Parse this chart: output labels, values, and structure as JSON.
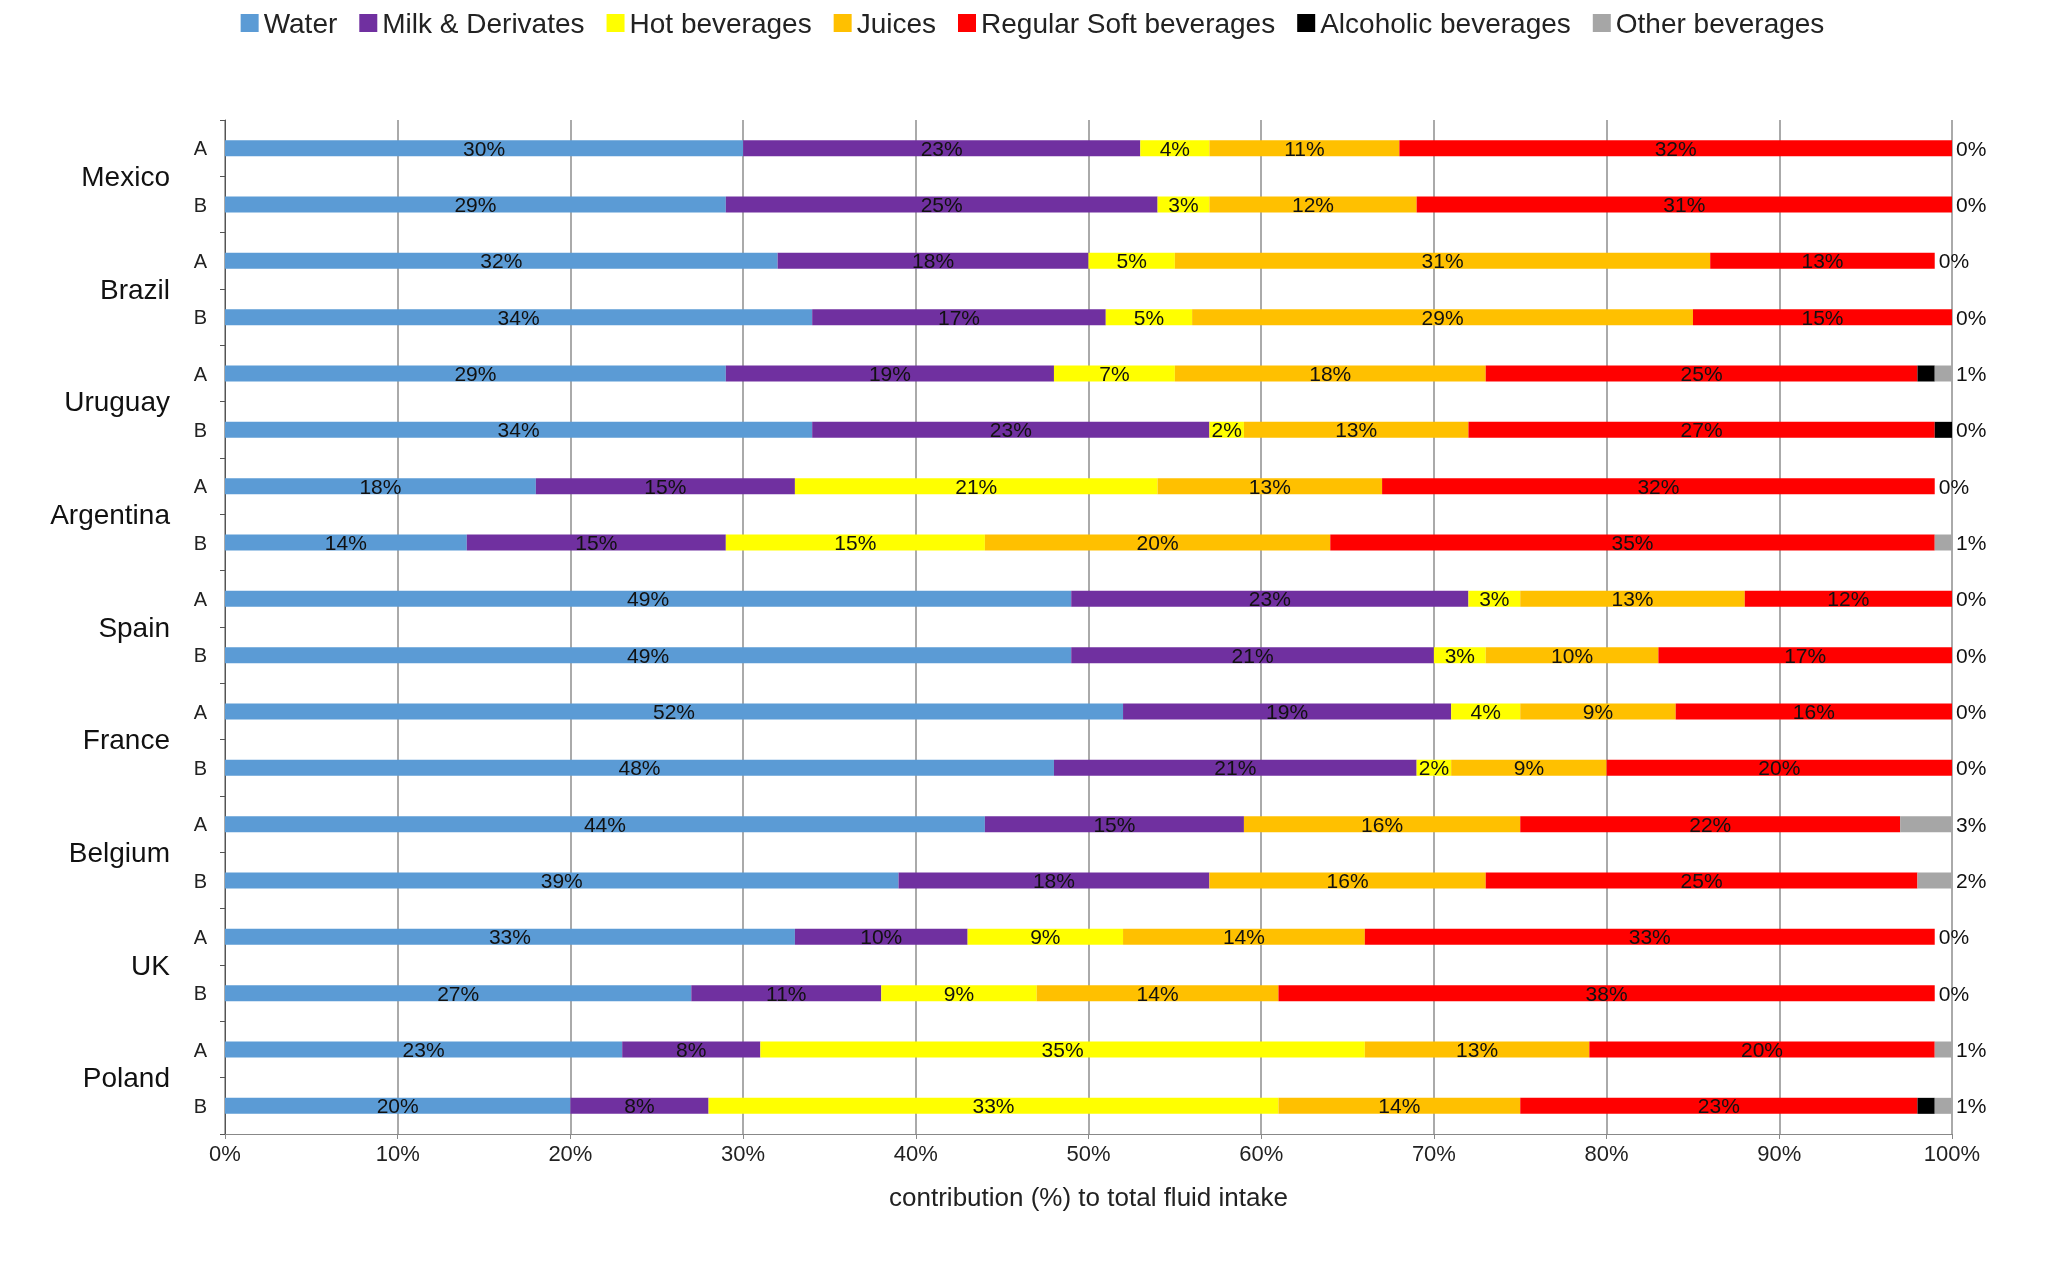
{
  "chart_data": {
    "type": "bar",
    "orientation": "horizontal",
    "stacked": true,
    "grid": "x",
    "legend": "top",
    "xlabel": "contribution (%) to total fluid intake",
    "categories": [
      "A",
      "B",
      "A",
      "B",
      "A",
      "B",
      "A",
      "B",
      "A",
      "B",
      "A",
      "B",
      "A",
      "B",
      "A",
      "B",
      "A",
      "B"
    ],
    "annotations": [
      "Mexico",
      "Brazil",
      "Uruguay",
      "Argentina",
      "Spain",
      "France",
      "Belgium",
      "UK",
      "Poland"
    ],
    "xlim": [
      0,
      100
    ],
    "xticks": [
      {
        "value": 0,
        "label": "0%"
      },
      {
        "value": 10,
        "label": "10%"
      },
      {
        "value": 20,
        "label": "20%"
      },
      {
        "value": 30,
        "label": "30%"
      },
      {
        "value": 40,
        "label": "40%"
      },
      {
        "value": 50,
        "label": "50%"
      },
      {
        "value": 60,
        "label": "60%"
      },
      {
        "value": 70,
        "label": "70%"
      },
      {
        "value": 80,
        "label": "80%"
      },
      {
        "value": 90,
        "label": "90%"
      },
      {
        "value": 100,
        "label": "100%"
      }
    ],
    "series": [
      {
        "name": "Water",
        "color": "#5b9bd5",
        "values": [
          30,
          29,
          32,
          34,
          29,
          34,
          18,
          14,
          49,
          49,
          52,
          48,
          44,
          39,
          33,
          27,
          23,
          20
        ],
        "value_labels": [
          "30%",
          "29%",
          "32%",
          "34%",
          "29%",
          "34%",
          "18%",
          "14%",
          "49%",
          "49%",
          "52%",
          "48%",
          "44%",
          "39%",
          "33%",
          "27%",
          "23%",
          "20%"
        ]
      },
      {
        "name": "Milk & Derivates",
        "color": "#7030a0",
        "values": [
          23,
          25,
          18,
          17,
          19,
          23,
          15,
          15,
          23,
          21,
          19,
          21,
          15,
          18,
          10,
          11,
          8,
          8
        ],
        "value_labels": [
          "23%",
          "25%",
          "18%",
          "17%",
          "19%",
          "23%",
          "15%",
          "15%",
          "23%",
          "21%",
          "19%",
          "21%",
          "15%",
          "18%",
          "10%",
          "11%",
          "8%",
          "8%"
        ]
      },
      {
        "name": "Hot beverages",
        "color": "#ffff00",
        "values": [
          4,
          3,
          5,
          5,
          7,
          2,
          21,
          15,
          3,
          3,
          4,
          2,
          null,
          null,
          9,
          9,
          35,
          33
        ],
        "value_labels": [
          "4%",
          "3%",
          "5%",
          "5%",
          "7%",
          "2%",
          "21%",
          "15%",
          "3%",
          "3%",
          "4%",
          "2%",
          null,
          null,
          "9%",
          "9%",
          "35%",
          "33%"
        ]
      },
      {
        "name": "Juices",
        "color": "#ffc000",
        "values": [
          11,
          12,
          31,
          29,
          18,
          13,
          13,
          20,
          13,
          10,
          9,
          9,
          16,
          16,
          14,
          14,
          13,
          14
        ],
        "value_labels": [
          "11%",
          "12%",
          "31%",
          "29%",
          "18%",
          "13%",
          "13%",
          "20%",
          "13%",
          "10%",
          "9%",
          "9%",
          "16%",
          "16%",
          "14%",
          "14%",
          "13%",
          "14%"
        ]
      },
      {
        "name": "Regular Soft beverages",
        "color": "#ff0000",
        "values": [
          32,
          31,
          13,
          15,
          25,
          27,
          32,
          35,
          12,
          17,
          16,
          20,
          22,
          25,
          33,
          38,
          20,
          23
        ],
        "value_labels": [
          "32%",
          "31%",
          "13%",
          "15%",
          "25%",
          "27%",
          "32%",
          "35%",
          "12%",
          "17%",
          "16%",
          "20%",
          "22%",
          "25%",
          "33%",
          "38%",
          "20%",
          "23%"
        ]
      },
      {
        "name": "Alcoholic beverages",
        "color": "#000000",
        "values": [
          0,
          0,
          0,
          0,
          1,
          1,
          0,
          0,
          0,
          0,
          0,
          0,
          0,
          0,
          0,
          0,
          0,
          1
        ],
        "value_labels": [
          null,
          null,
          null,
          null,
          null,
          null,
          null,
          null,
          null,
          null,
          null,
          null,
          null,
          null,
          null,
          null,
          null,
          null
        ]
      },
      {
        "name": "Other beverages",
        "color": "#a6a6a6",
        "values": [
          0,
          0,
          0,
          0,
          1,
          0,
          0,
          1,
          0,
          0,
          0,
          0,
          3,
          2,
          0,
          0,
          1,
          1
        ],
        "value_labels": [
          "0%",
          "0%",
          "0%",
          "0%",
          "1%",
          "0%",
          "0%",
          "1%",
          "0%",
          "0%",
          "0%",
          "0%",
          "3%",
          "2%",
          "0%",
          "0%",
          "1%",
          "1%"
        ]
      }
    ]
  }
}
